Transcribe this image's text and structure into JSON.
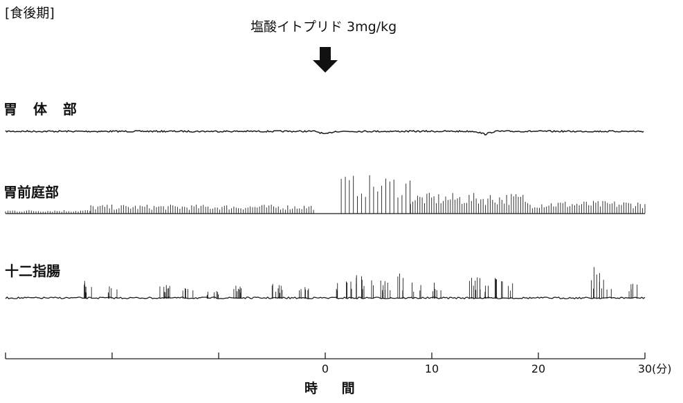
{
  "chart_data": {
    "type": "line",
    "title": "[食後期]",
    "subtitle": "塩酸イトプリド 3mg/kg",
    "xlabel": "時 間",
    "x_unit": "(分)",
    "xlim": [
      -30,
      30
    ],
    "x_ticks": [
      -30,
      -20,
      -10,
      0,
      10,
      20,
      30
    ],
    "x_tick_labels": [
      "",
      "",
      "",
      "0",
      "10",
      "20",
      "30"
    ],
    "administration_time": 0,
    "series": [
      {
        "name": "胃 体 部",
        "description_values": {
          "baseline_level": 0.0,
          "max_amplitude": 0.3,
          "event_times": [
            0,
            15
          ]
        }
      },
      {
        "name": "胃前庭部",
        "description_values": {
          "segments": [
            {
              "from": -30,
              "to": -22,
              "amplitude": 0.3
            },
            {
              "from": -22,
              "to": -1,
              "amplitude": 0.7
            },
            {
              "from": 1.5,
              "to": 8,
              "amplitude": 3.0
            },
            {
              "from": 8,
              "to": 19,
              "amplitude": 1.6
            },
            {
              "from": 19,
              "to": 30,
              "amplitude": 1.0
            }
          ]
        }
      },
      {
        "name": "十二指腸",
        "description_values": {
          "baseline_level": 0.0,
          "burst_times": [
            -22.5,
            -20,
            -15,
            -13,
            -10.5,
            -8,
            -4.5,
            -2,
            1.5,
            3,
            4,
            5.5,
            7,
            8.5,
            10.5,
            14,
            15.5,
            17,
            25.5,
            26.5,
            29
          ],
          "burst_amplitudes": [
            1.4,
            0.9,
            1.0,
            0.8,
            0.6,
            1.0,
            1.1,
            0.9,
            1.3,
            2.2,
            1.7,
            1.4,
            2.0,
            1.6,
            1.2,
            1.8,
            1.6,
            1.3,
            2.4,
            1.6,
            1.4
          ]
        }
      }
    ]
  },
  "colors": {
    "trace": "#1a1a1a",
    "background": "#ffffff"
  },
  "icons": {
    "arrow": "down-arrow-icon"
  }
}
